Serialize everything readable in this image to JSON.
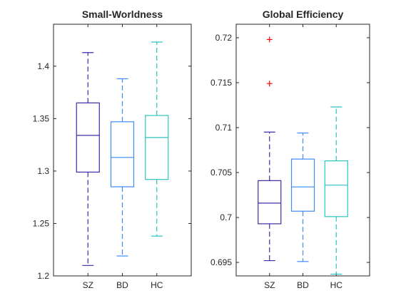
{
  "chart_data": [
    {
      "type": "box",
      "title": "Small-Worldness",
      "categories": [
        "SZ",
        "BD",
        "HC"
      ],
      "ylim": [
        1.2,
        1.44
      ],
      "yticks": [
        "1.2",
        "1.25",
        "1.3",
        "1.35",
        "1.4"
      ],
      "ytick_values": [
        1.2,
        1.25,
        1.3,
        1.35,
        1.4
      ],
      "grid": false,
      "boxes": [
        {
          "group": "SZ",
          "color": "#3a2ea8",
          "whisker_low": 1.21,
          "q1": 1.299,
          "median": 1.334,
          "q3": 1.365,
          "whisker_high": 1.413,
          "outliers": []
        },
        {
          "group": "BD",
          "color": "#3d8af7",
          "whisker_low": 1.219,
          "q1": 1.285,
          "median": 1.313,
          "q3": 1.347,
          "whisker_high": 1.388,
          "outliers": []
        },
        {
          "group": "HC",
          "color": "#2cc4c0",
          "whisker_low": 1.238,
          "q1": 1.292,
          "median": 1.332,
          "q3": 1.353,
          "whisker_high": 1.423,
          "outliers": []
        }
      ]
    },
    {
      "type": "box",
      "title": "Global Efficiency",
      "categories": [
        "SZ",
        "BD",
        "HC"
      ],
      "ylim": [
        0.6935,
        0.7215
      ],
      "yticks": [
        "0.695",
        "0.7",
        "0.705",
        "0.71",
        "0.715",
        "0.72"
      ],
      "ytick_values": [
        0.695,
        0.7,
        0.705,
        0.71,
        0.715,
        0.72
      ],
      "grid": false,
      "boxes": [
        {
          "group": "SZ",
          "color": "#3a2ea8",
          "whisker_low": 0.6952,
          "q1": 0.6993,
          "median": 0.7016,
          "q3": 0.7041,
          "whisker_high": 0.7095,
          "outliers": [
            0.7149,
            0.7198
          ]
        },
        {
          "group": "BD",
          "color": "#3d8af7",
          "whisker_low": 0.6951,
          "q1": 0.7007,
          "median": 0.7034,
          "q3": 0.7065,
          "whisker_high": 0.7094,
          "outliers": []
        },
        {
          "group": "HC",
          "color": "#2cc4c0",
          "whisker_low": 0.6937,
          "q1": 0.7001,
          "median": 0.7036,
          "q3": 0.7063,
          "whisker_high": 0.7123,
          "outliers": []
        }
      ]
    }
  ],
  "outlier_color": "#ff0000"
}
